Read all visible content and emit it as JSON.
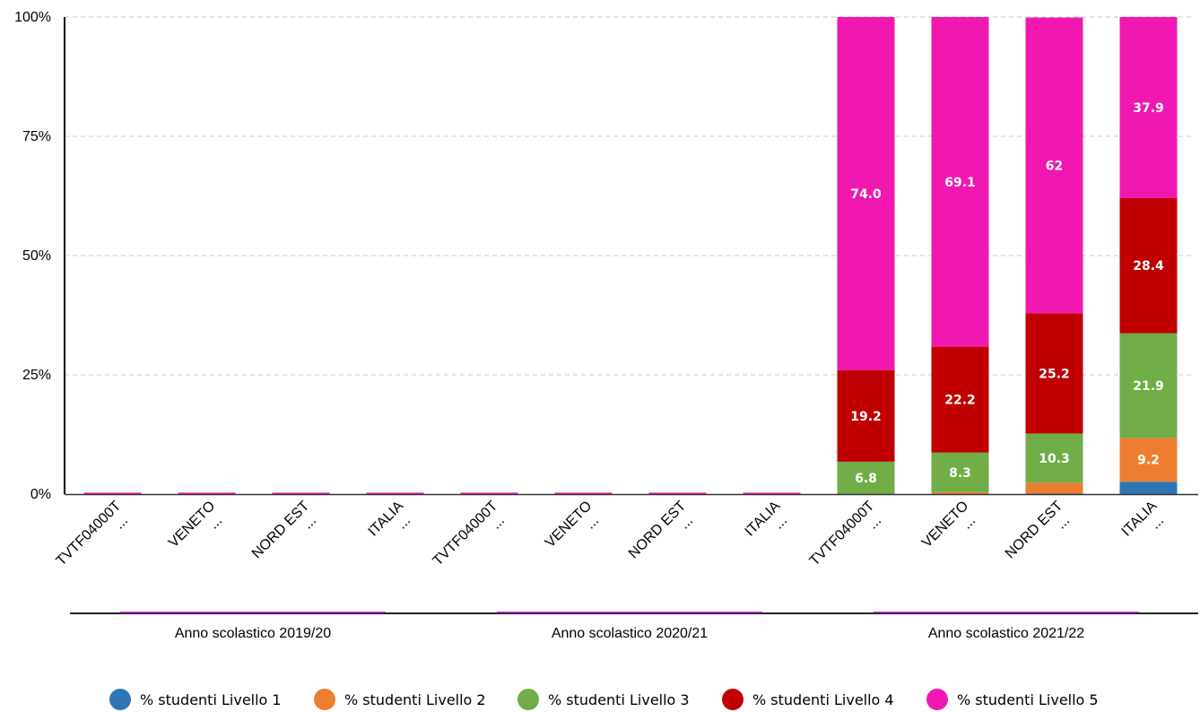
{
  "chart_data": {
    "type": "bar",
    "stacked": true,
    "y_ticks": [
      "0%",
      "25%",
      "50%",
      "75%",
      "100%"
    ],
    "ylim": [
      0,
      100
    ],
    "grid": true,
    "legend_placement": "bottom",
    "groups": [
      "Anno scolastico 2019/20",
      "Anno scolastico 2020/21",
      "Anno scolastico 2021/22"
    ],
    "categories": [
      {
        "name": "TVTF04000T",
        "sub": "...",
        "group": 0
      },
      {
        "name": "VENETO",
        "sub": "...",
        "group": 0
      },
      {
        "name": "NORD EST",
        "sub": "...",
        "group": 0
      },
      {
        "name": "ITALIA",
        "sub": "...",
        "group": 0
      },
      {
        "name": "TVTF04000T",
        "sub": "...",
        "group": 1
      },
      {
        "name": "VENETO",
        "sub": "...",
        "group": 1
      },
      {
        "name": "NORD EST",
        "sub": "...",
        "group": 1
      },
      {
        "name": "ITALIA",
        "sub": "...",
        "group": 1
      },
      {
        "name": "TVTF04000T",
        "sub": "...",
        "group": 2
      },
      {
        "name": "VENETO",
        "sub": "...",
        "group": 2
      },
      {
        "name": "NORD EST",
        "sub": "...",
        "group": 2
      },
      {
        "name": "ITALIA",
        "sub": "...",
        "group": 2
      }
    ],
    "series": [
      {
        "name": "% studenti Livello 1",
        "color": "#2f75b5",
        "values": [
          0,
          0,
          0,
          0,
          0,
          0,
          0,
          0,
          0,
          0,
          0.1,
          2.6
        ],
        "labels": [
          "",
          "",
          "",
          "",
          "",
          "",
          "",
          "",
          "",
          "",
          "",
          ""
        ]
      },
      {
        "name": "% studenti Livello 2",
        "color": "#ed7d31",
        "values": [
          0,
          0,
          0,
          0,
          0,
          0,
          0,
          0,
          0,
          0.4,
          2.3,
          9.2
        ],
        "labels": [
          "",
          "",
          "",
          "",
          "",
          "",
          "",
          "",
          "",
          "",
          "",
          "9.2"
        ]
      },
      {
        "name": "% studenti Livello 3",
        "color": "#70ad47",
        "values": [
          0,
          0,
          0,
          0,
          0,
          0,
          0,
          0,
          6.8,
          8.3,
          10.3,
          21.9
        ],
        "labels": [
          "",
          "",
          "",
          "",
          "",
          "",
          "",
          "",
          "6.8",
          "8.3",
          "10.3",
          "21.9"
        ]
      },
      {
        "name": "% studenti Livello 4",
        "color": "#c00000",
        "values": [
          0,
          0,
          0,
          0,
          0,
          0,
          0,
          0,
          19.2,
          22.2,
          25.2,
          28.4
        ],
        "labels": [
          "",
          "",
          "",
          "",
          "",
          "",
          "",
          "",
          "19.2",
          "22.2",
          "25.2",
          "28.4"
        ]
      },
      {
        "name": "% studenti Livello 5",
        "color": "#f018b0",
        "values": [
          0.3,
          0.3,
          0.3,
          0.3,
          0.3,
          0.3,
          0.3,
          0.3,
          74.0,
          69.1,
          62,
          37.9
        ],
        "labels": [
          "",
          "",
          "",
          "",
          "",
          "",
          "",
          "",
          "74.0",
          "69.1",
          "62",
          "37.9"
        ]
      }
    ]
  }
}
